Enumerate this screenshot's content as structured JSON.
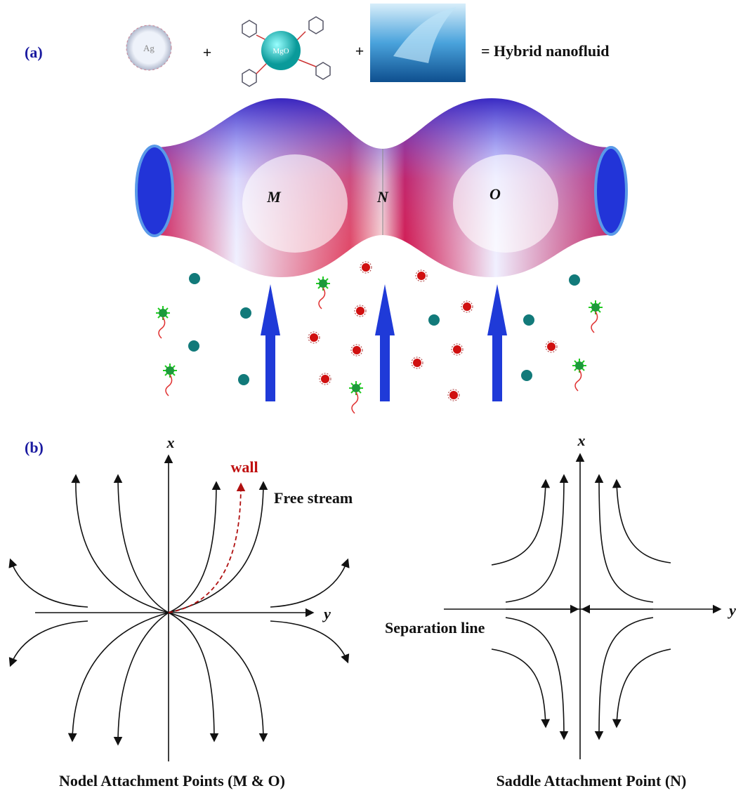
{
  "panel_a": {
    "label": "(a)",
    "components": [
      "Ag",
      "MgO"
    ],
    "operators": [
      "+",
      "+"
    ],
    "result": "= Hybrid nanofluid",
    "points": [
      "M",
      "N",
      "O"
    ]
  },
  "panel_b": {
    "label": "(b)",
    "nodal": {
      "x_axis": "x",
      "y_axis": "y",
      "wall": "wall",
      "free_stream": "Free stream",
      "caption": "Nodel Attachment Points (M & O)"
    },
    "saddle": {
      "x_axis": "x",
      "y_axis": "y",
      "separation": "Separation line",
      "caption": "Saddle Attachment Point (N)"
    }
  }
}
